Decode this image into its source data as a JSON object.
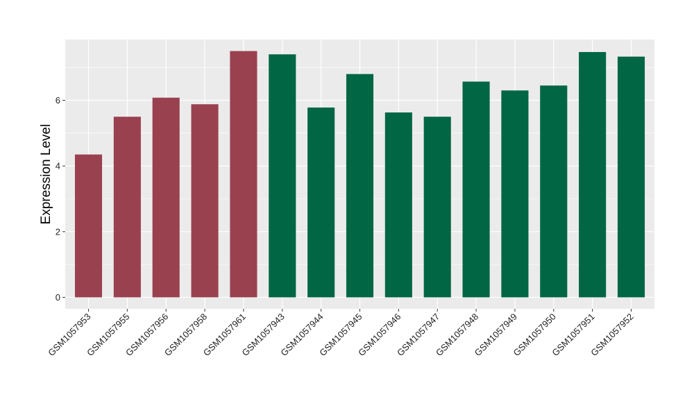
{
  "chart_data": {
    "type": "bar",
    "title": "",
    "xlabel": "",
    "ylabel": "Expression Level",
    "categories": [
      "GSM1057953",
      "GSM1057955",
      "GSM1057956",
      "GSM1057958",
      "GSM1057961",
      "GSM1057943",
      "GSM1057944",
      "GSM1057945",
      "GSM1057946",
      "GSM1057947",
      "GSM1057948",
      "GSM1057949",
      "GSM1057950",
      "GSM1057951",
      "GSM1057952"
    ],
    "values": [
      4.35,
      5.5,
      6.08,
      5.88,
      7.5,
      7.4,
      5.78,
      6.8,
      5.63,
      5.5,
      6.57,
      6.3,
      6.45,
      7.47,
      7.33
    ],
    "bar_colors": [
      "#9a4150",
      "#9a4150",
      "#9a4150",
      "#9a4150",
      "#9a4150",
      "#006644",
      "#006644",
      "#006644",
      "#006644",
      "#006644",
      "#006644",
      "#006644",
      "#006644",
      "#006644",
      "#006644"
    ],
    "ylim": [
      -0.35,
      7.85
    ],
    "yticks": [
      0,
      2,
      4,
      6
    ],
    "ytick_labels": [
      "0",
      "2",
      "4",
      "6"
    ],
    "grid": true,
    "panel_background": "#ebebeb",
    "grid_color": "#ffffff",
    "legend": "none"
  }
}
